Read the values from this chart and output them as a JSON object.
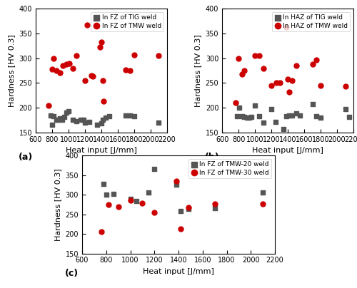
{
  "subplot_a": {
    "title": "(a)",
    "xlabel": "Heat input [J/mm]",
    "ylabel": "Hardness [HV 0.3]",
    "xlim": [
      600,
      2200
    ],
    "ylim": [
      150,
      400
    ],
    "xticks": [
      600,
      800,
      1000,
      1200,
      1400,
      1600,
      1800,
      2000,
      2200
    ],
    "yticks": [
      150,
      200,
      250,
      300,
      350,
      400
    ],
    "series1_label": "In FZ of TIG weld",
    "series1_color": "#555555",
    "series1_marker": "s",
    "series1_x": [
      780,
      800,
      820,
      850,
      870,
      900,
      920,
      950,
      970,
      1000,
      1050,
      1100,
      1150,
      1180,
      1200,
      1250,
      1350,
      1400,
      1420,
      1450,
      1500,
      1700,
      1750,
      1800,
      2100
    ],
    "series1_y": [
      185,
      165,
      183,
      175,
      175,
      178,
      175,
      182,
      190,
      193,
      175,
      173,
      175,
      175,
      170,
      172,
      165,
      168,
      175,
      180,
      183,
      185,
      185,
      183,
      170
    ],
    "series2_label": "In FZ of TMW weld",
    "series2_color": "#cc0000",
    "series2_marker": "o",
    "series2_x": [
      760,
      800,
      820,
      850,
      900,
      930,
      970,
      1010,
      1050,
      1100,
      1200,
      1230,
      1280,
      1300,
      1380,
      1400,
      1420,
      1430,
      1700,
      1750,
      1800,
      2100
    ],
    "series2_y": [
      205,
      278,
      300,
      275,
      270,
      285,
      288,
      290,
      280,
      305,
      255,
      367,
      265,
      263,
      323,
      333,
      255,
      213,
      277,
      275,
      307,
      305
    ]
  },
  "subplot_b": {
    "title": "(b)",
    "xlabel": "Heat input [J/mm]",
    "ylabel": "Hardness [HV 0.3]",
    "xlim": [
      600,
      2200
    ],
    "ylim": [
      150,
      400
    ],
    "xticks": [
      600,
      800,
      1000,
      1200,
      1400,
      1600,
      1800,
      2000,
      2200
    ],
    "yticks": [
      150,
      200,
      250,
      300,
      350,
      400
    ],
    "series1_label": "In HAZ of TIG weld",
    "series1_color": "#555555",
    "series1_marker": "s",
    "series1_x": [
      780,
      810,
      840,
      870,
      900,
      930,
      960,
      1000,
      1050,
      1100,
      1200,
      1250,
      1350,
      1380,
      1420,
      1450,
      1500,
      1550,
      1700,
      1750,
      1800,
      2100,
      2150
    ],
    "series1_y": [
      183,
      200,
      183,
      182,
      180,
      180,
      182,
      205,
      183,
      170,
      197,
      172,
      157,
      183,
      185,
      185,
      188,
      185,
      207,
      183,
      180,
      197,
      182
    ],
    "series2_label": "In HAZ of TMW weld",
    "series2_color": "#cc0000",
    "series2_marker": "o",
    "series2_x": [
      760,
      800,
      840,
      870,
      1000,
      1050,
      1100,
      1200,
      1260,
      1300,
      1380,
      1400,
      1420,
      1450,
      1500,
      1700,
      1750,
      1800,
      2100
    ],
    "series2_y": [
      210,
      300,
      268,
      275,
      305,
      305,
      280,
      245,
      250,
      250,
      363,
      257,
      232,
      255,
      285,
      288,
      297,
      245,
      243
    ]
  },
  "subplot_c": {
    "title": "(c)",
    "xlabel": "Heat input [J/mm]",
    "ylabel": "Hardness [HV 0.3]",
    "xlim": [
      600,
      2200
    ],
    "ylim": [
      150,
      400
    ],
    "xticks": [
      600,
      800,
      1000,
      1200,
      1400,
      1600,
      1800,
      2000,
      2200
    ],
    "yticks": [
      150,
      200,
      250,
      300,
      350,
      400
    ],
    "series1_label": "In FZ of TMW-20 weld",
    "series1_color": "#555555",
    "series1_marker": "s",
    "series1_x": [
      780,
      800,
      860,
      1000,
      1050,
      1150,
      1200,
      1380,
      1420,
      1480,
      1700,
      2100
    ],
    "series1_y": [
      327,
      301,
      302,
      290,
      284,
      305,
      365,
      325,
      258,
      263,
      265,
      306
    ],
    "series2_label": "In FZ of TMW-30 weld",
    "series2_color": "#cc0000",
    "series2_marker": "o",
    "series2_x": [
      760,
      820,
      900,
      1000,
      1100,
      1200,
      1380,
      1420,
      1480,
      1700,
      2100
    ],
    "series2_y": [
      205,
      275,
      270,
      285,
      278,
      254,
      334,
      212,
      267,
      277,
      277
    ]
  },
  "background_color": "#ffffff",
  "marker_size": 25,
  "legend_fontsize": 6.5,
  "tick_fontsize": 7,
  "label_fontsize": 8,
  "label_bold_fontsize": 9
}
